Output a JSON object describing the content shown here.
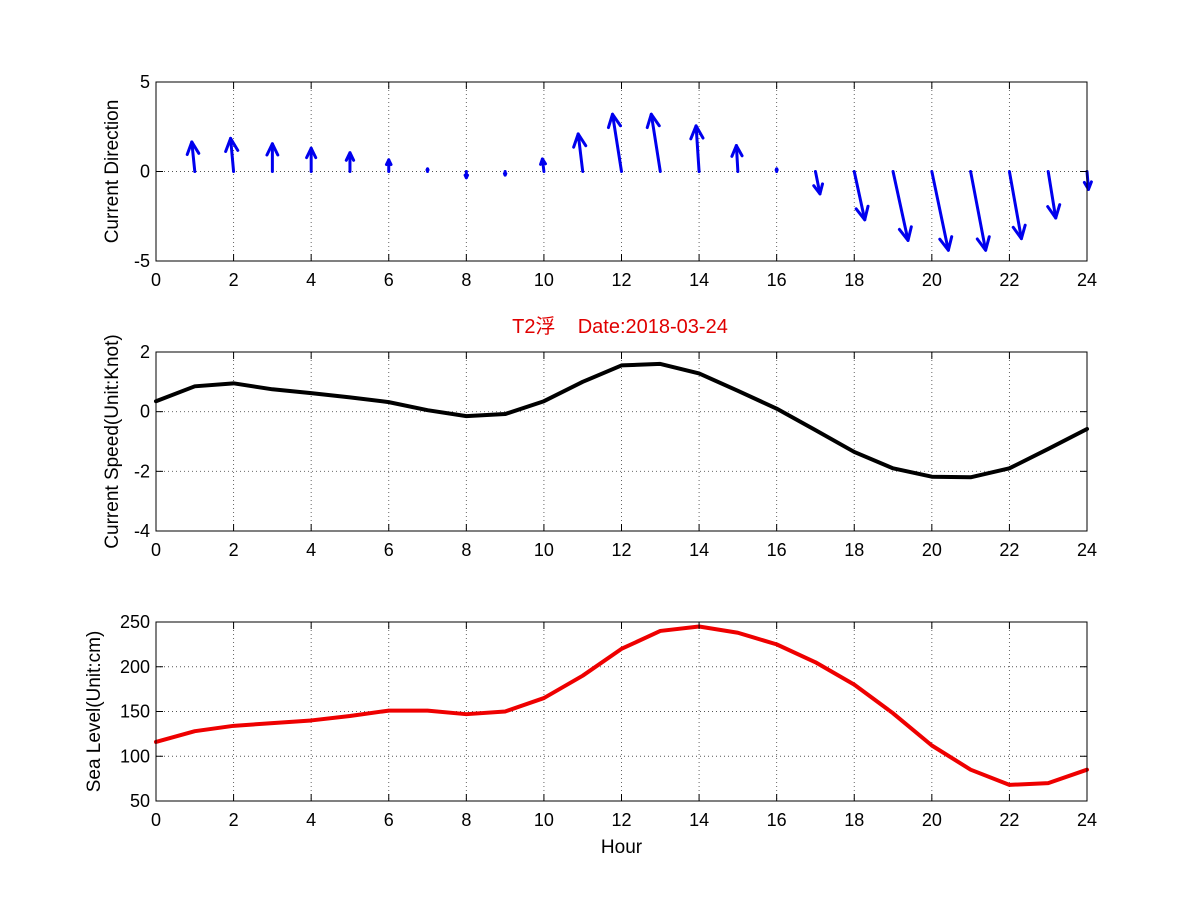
{
  "figure": {
    "title": "T2浮    Date:2018-03-24",
    "title_color": "#e00000",
    "background": "#ffffff"
  },
  "chart_data": [
    {
      "type": "quiver",
      "ylabel": "Current Direction",
      "xlabel": "",
      "xlim": [
        0,
        24
      ],
      "ylim": [
        -5,
        5
      ],
      "xticks": [
        0,
        2,
        4,
        6,
        8,
        10,
        12,
        14,
        16,
        18,
        20,
        22,
        24
      ],
      "yticks": [
        -5,
        0,
        5
      ],
      "grid": true,
      "color": "#0000ee",
      "x": [
        1,
        2,
        3,
        4,
        5,
        6,
        7,
        8,
        9,
        10,
        11,
        12,
        13,
        14,
        15,
        16,
        17,
        18,
        19,
        20,
        21,
        22,
        23,
        24
      ],
      "u": [
        -0.1,
        -0.1,
        0,
        0,
        0,
        0,
        0,
        0,
        0,
        -0.05,
        -0.15,
        -0.3,
        -0.3,
        -0.1,
        -0.05,
        0,
        0.15,
        0.35,
        0.5,
        0.55,
        0.5,
        0.4,
        0.25,
        0.05
      ],
      "v": [
        1.65,
        1.85,
        1.55,
        1.3,
        1.05,
        0.65,
        0.15,
        -0.35,
        -0.2,
        0.7,
        2.1,
        3.2,
        3.2,
        2.55,
        1.45,
        0.15,
        -1.25,
        -2.7,
        -3.85,
        -4.4,
        -4.4,
        -3.75,
        -2.6,
        -1.0
      ]
    },
    {
      "type": "line",
      "ylabel": "Current Speed(Unit:Knot)",
      "xlabel": "",
      "xlim": [
        0,
        24
      ],
      "ylim": [
        -4,
        2
      ],
      "xticks": [
        0,
        2,
        4,
        6,
        8,
        10,
        12,
        14,
        16,
        18,
        20,
        22,
        24
      ],
      "yticks": [
        -4,
        -2,
        0,
        2
      ],
      "grid": true,
      "series": [
        {
          "color": "#000000",
          "x": [
            0,
            1,
            2,
            3,
            4,
            5,
            6,
            7,
            8,
            9,
            10,
            11,
            12,
            13,
            14,
            15,
            16,
            17,
            18,
            19,
            20,
            21,
            22,
            23,
            24
          ],
          "values": [
            0.35,
            0.85,
            0.95,
            0.75,
            0.62,
            0.48,
            0.32,
            0.05,
            -0.15,
            -0.08,
            0.35,
            1.0,
            1.55,
            1.6,
            1.28,
            0.7,
            0.1,
            -0.62,
            -1.35,
            -1.9,
            -2.18,
            -2.2,
            -1.9,
            -1.25,
            -0.58
          ]
        }
      ]
    },
    {
      "type": "line",
      "ylabel": "Sea Level(Unit:cm)",
      "xlabel": "Hour",
      "xlim": [
        0,
        24
      ],
      "ylim": [
        50,
        250
      ],
      "xticks": [
        0,
        2,
        4,
        6,
        8,
        10,
        12,
        14,
        16,
        18,
        20,
        22,
        24
      ],
      "yticks": [
        50,
        100,
        150,
        200,
        250
      ],
      "grid": true,
      "series": [
        {
          "color": "#ee0000",
          "x": [
            0,
            1,
            2,
            3,
            4,
            5,
            6,
            7,
            8,
            9,
            10,
            11,
            12,
            13,
            14,
            15,
            16,
            17,
            18,
            19,
            20,
            21,
            22,
            23,
            24
          ],
          "values": [
            116,
            128,
            134,
            137,
            140,
            145,
            151,
            151,
            147,
            150,
            165,
            190,
            220,
            240,
            245,
            238,
            225,
            205,
            180,
            148,
            112,
            85,
            68,
            70,
            85
          ]
        }
      ]
    }
  ]
}
